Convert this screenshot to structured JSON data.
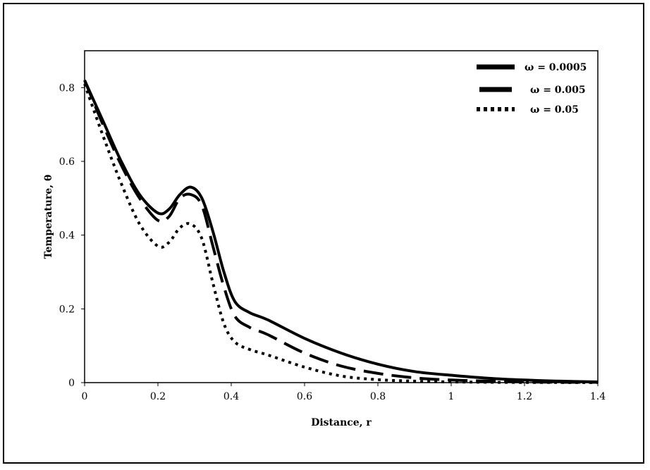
{
  "chart_data": {
    "type": "line",
    "xlabel": "Distance, r",
    "ylabel": "Temperature, θ",
    "xlim": [
      0,
      1.4
    ],
    "ylim": [
      0,
      0.9
    ],
    "xticks": [
      "0",
      "0.2",
      "0.4",
      "0.6",
      "0.8",
      "1",
      "1.2",
      "1.4"
    ],
    "yticks": [
      "0",
      "0.2",
      "0.4",
      "0.6",
      "0.8"
    ],
    "grid": false,
    "legend_position": "top-right",
    "series": [
      {
        "name": "ω = 0.0005",
        "style": "solid",
        "x": [
          0,
          0.05,
          0.1,
          0.15,
          0.2,
          0.23,
          0.26,
          0.29,
          0.32,
          0.35,
          0.38,
          0.41,
          0.45,
          0.5,
          0.6,
          0.7,
          0.8,
          0.9,
          1.0,
          1.1,
          1.2,
          1.3,
          1.4
        ],
        "y": [
          0.82,
          0.71,
          0.6,
          0.51,
          0.46,
          0.47,
          0.51,
          0.53,
          0.5,
          0.41,
          0.3,
          0.22,
          0.19,
          0.17,
          0.12,
          0.08,
          0.05,
          0.03,
          0.02,
          0.012,
          0.007,
          0.004,
          0.002
        ]
      },
      {
        "name": "ω = 0.005",
        "style": "dashed",
        "x": [
          0,
          0.05,
          0.1,
          0.15,
          0.2,
          0.23,
          0.26,
          0.29,
          0.32,
          0.35,
          0.38,
          0.41,
          0.45,
          0.5,
          0.6,
          0.7,
          0.8,
          0.9,
          1.0,
          1.1,
          1.2,
          1.3,
          1.4
        ],
        "y": [
          0.82,
          0.7,
          0.59,
          0.5,
          0.44,
          0.45,
          0.5,
          0.51,
          0.48,
          0.37,
          0.26,
          0.18,
          0.15,
          0.13,
          0.08,
          0.045,
          0.025,
          0.013,
          0.007,
          0.004,
          0.002,
          0.001,
          0.001
        ]
      },
      {
        "name": "ω = 0.05",
        "style": "dotted",
        "x": [
          0,
          0.05,
          0.1,
          0.15,
          0.2,
          0.23,
          0.26,
          0.29,
          0.32,
          0.35,
          0.38,
          0.41,
          0.45,
          0.5,
          0.6,
          0.7,
          0.8,
          0.9,
          1.0,
          1.1,
          1.2,
          1.3,
          1.4
        ],
        "y": [
          0.81,
          0.67,
          0.54,
          0.43,
          0.37,
          0.38,
          0.42,
          0.43,
          0.39,
          0.27,
          0.16,
          0.11,
          0.09,
          0.075,
          0.042,
          0.018,
          0.008,
          0.004,
          0.002,
          0.001,
          0.0005,
          0.0003,
          0.0002
        ]
      }
    ]
  }
}
